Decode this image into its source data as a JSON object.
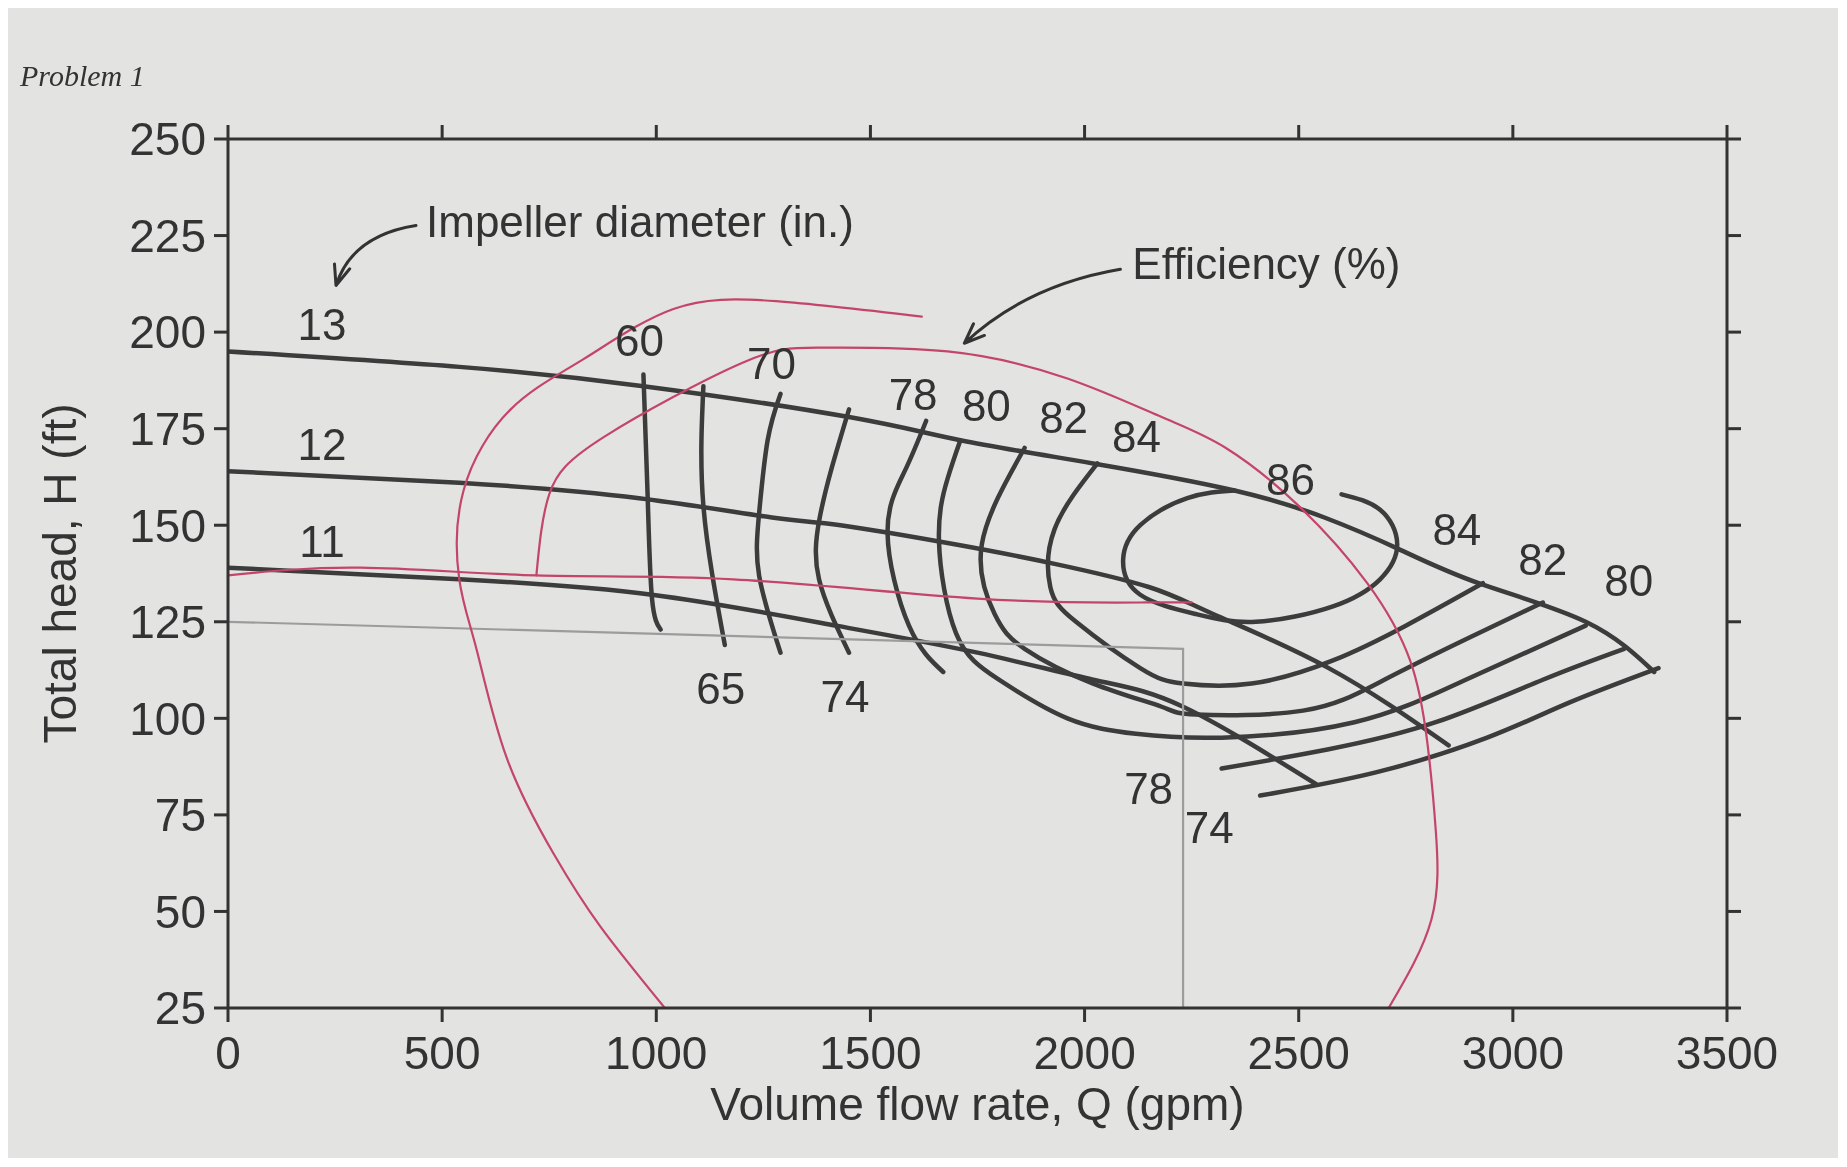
{
  "chart_data": {
    "type": "line",
    "title": "Problem 1",
    "xlabel": "Volume flow rate, Q (gpm)",
    "ylabel": "Total head, H (ft)",
    "xlim": [
      0,
      3500
    ],
    "xticks": [
      0,
      500,
      1000,
      1500,
      2000,
      2500,
      3000,
      3500
    ],
    "ylim": [
      25,
      250
    ],
    "yticks": [
      25,
      50,
      75,
      100,
      125,
      150,
      175,
      200,
      225,
      250
    ],
    "series": [
      {
        "color": "#3c3c3c",
        "x": [
          0,
          540,
          970,
          1450,
          1710,
          2020,
          2350,
          2560,
          2730,
          2920,
          3170,
          3330
        ],
        "values": [
          195,
          191,
          186,
          178,
          172,
          166,
          159,
          152,
          144,
          135,
          125,
          112
        ]
      },
      {
        "color": "#3c3c3c",
        "x": [
          0,
          540,
          960,
          1270,
          1430,
          1700,
          1930,
          2150,
          2300,
          2570,
          2850
        ],
        "values": [
          164,
          161,
          157,
          152,
          150,
          145,
          140,
          134,
          127,
          113,
          93
        ]
      },
      {
        "color": "#3c3c3c",
        "x": [
          0,
          540,
          990,
          1420,
          1750,
          2020,
          2230,
          2540
        ],
        "values": [
          139,
          136,
          132,
          124,
          117,
          110,
          103,
          83
        ]
      },
      {
        "color": "#3c3c3c",
        "x": [
          970,
          980,
          990,
          1010
        ],
        "values": [
          189,
          157,
          131,
          123
        ]
      },
      {
        "color": "#3c3c3c",
        "x": [
          1110,
          1110,
          1160
        ],
        "values": [
          186,
          155,
          119
        ]
      },
      {
        "color": "#3c3c3c",
        "x": [
          1290,
          1260,
          1240,
          1240,
          1290
        ],
        "values": [
          184,
          172,
          153,
          137,
          117
        ]
      },
      {
        "color": "#3c3c3c",
        "x": [
          1450,
          1410,
          1380,
          1380,
          1450
        ],
        "values": [
          180,
          165,
          151,
          136,
          117
        ]
      },
      {
        "color": "#3c3c3c",
        "x": [
          1630,
          1580,
          1540,
          1590,
          1670
        ],
        "values": [
          177,
          164,
          148,
          124,
          112
        ]
      },
      {
        "color": "#3c3c3c",
        "x": [
          1710,
          1680,
          1660,
          1700,
          1800,
          1960,
          2120,
          2320,
          2630,
          2890,
          3170
        ],
        "values": [
          172,
          162,
          146,
          122,
          110,
          100,
          96,
          95,
          99,
          110,
          124
        ]
      },
      {
        "color": "#3c3c3c",
        "x": [
          1860,
          1760,
          1790,
          1860,
          2020,
          2180,
          2260,
          2510,
          2700,
          2900,
          3070
        ],
        "values": [
          170,
          145,
          127,
          118,
          109,
          103,
          101,
          102,
          110,
          121,
          130
        ]
      },
      {
        "color": "#3c3c3c",
        "x": [
          2030,
          1930,
          1920,
          1980,
          2130,
          2230,
          2390,
          2580,
          2750,
          2930
        ],
        "values": [
          166,
          149,
          134,
          125,
          113,
          109,
          109,
          115,
          124,
          135
        ]
      },
      {
        "color": "#3c3c3c",
        "x": [
          2600,
          2690,
          2730,
          2690,
          2580,
          2400,
          2260,
          2130,
          2090,
          2130,
          2240,
          2350
        ],
        "values": [
          158,
          154,
          145,
          136,
          129,
          125,
          127,
          132,
          141,
          150,
          157,
          159
        ]
      },
      {
        "color": "#3c3c3c",
        "x": [
          2320,
          2570,
          2820,
          3070,
          3260
        ],
        "values": [
          87,
          92,
          99,
          110,
          118
        ]
      },
      {
        "color": "#3c3c3c",
        "x": [
          2410,
          2680,
          2940,
          3130,
          3340
        ],
        "values": [
          80,
          86,
          95,
          104,
          113
        ]
      },
      {
        "color": "#c4456a",
        "x": [
          0,
          310,
          720,
          1180,
          1750,
          2140,
          2250
        ],
        "values": [
          137,
          139,
          137,
          136,
          131,
          130,
          130
        ]
      },
      {
        "color": "#9c9c9c",
        "x": [
          0,
          2230
        ],
        "values": [
          125,
          118
        ]
      },
      {
        "color": "#9c9c9c",
        "x": [
          2230,
          2230
        ],
        "values": [
          118,
          25
        ]
      },
      {
        "color": "#c4456a",
        "x": [
          1020,
          870,
          760,
          650,
          580,
          540,
          550,
          660,
          830,
          1040,
          1280,
          1620
        ],
        "values": [
          25,
          46,
          65,
          90,
          118,
          136,
          159,
          180,
          193,
          206,
          208,
          204
        ]
      },
      {
        "color": "#c4456a",
        "x": [
          720,
          750,
          880,
          1200,
          1390,
          1680,
          1960,
          2180,
          2330,
          2500,
          2660,
          2760,
          2800,
          2820,
          2810,
          2710
        ],
        "values": [
          137,
          158,
          173,
          192,
          196,
          195,
          188,
          178,
          170,
          155,
          135,
          115,
          94,
          71,
          48,
          25
        ]
      }
    ],
    "annotations": [
      "Impeller diameter (in.)",
      "Efficiency (%)",
      {
        "text": "13",
        "x": 0,
        "y": 195
      },
      {
        "text": "12",
        "x": 0,
        "y": 164
      },
      {
        "text": "11",
        "x": 0,
        "y": 139
      },
      {
        "text": "60",
        "x": 970,
        "y": 189
      },
      {
        "text": "65",
        "x": 1160,
        "y": 119
      },
      {
        "text": "70",
        "x": 1290,
        "y": 184
      },
      {
        "text": "74",
        "x": 1450,
        "y": 117
      },
      {
        "text": "78",
        "x": 1630,
        "y": 177
      },
      {
        "text": "80",
        "x": 1710,
        "y": 172
      },
      {
        "text": "82",
        "x": 1860,
        "y": 170
      },
      {
        "text": "84",
        "x": 2030,
        "y": 166
      },
      {
        "text": "86",
        "x": 2600,
        "y": 158
      },
      {
        "text": "84",
        "x": 2930,
        "y": 135
      },
      {
        "text": "82",
        "x": 3070,
        "y": 130
      },
      {
        "text": "80",
        "x": 3170,
        "y": 124
      },
      {
        "text": "78",
        "x": 2320,
        "y": 87
      },
      {
        "text": "74",
        "x": 2410,
        "y": 80
      }
    ]
  }
}
